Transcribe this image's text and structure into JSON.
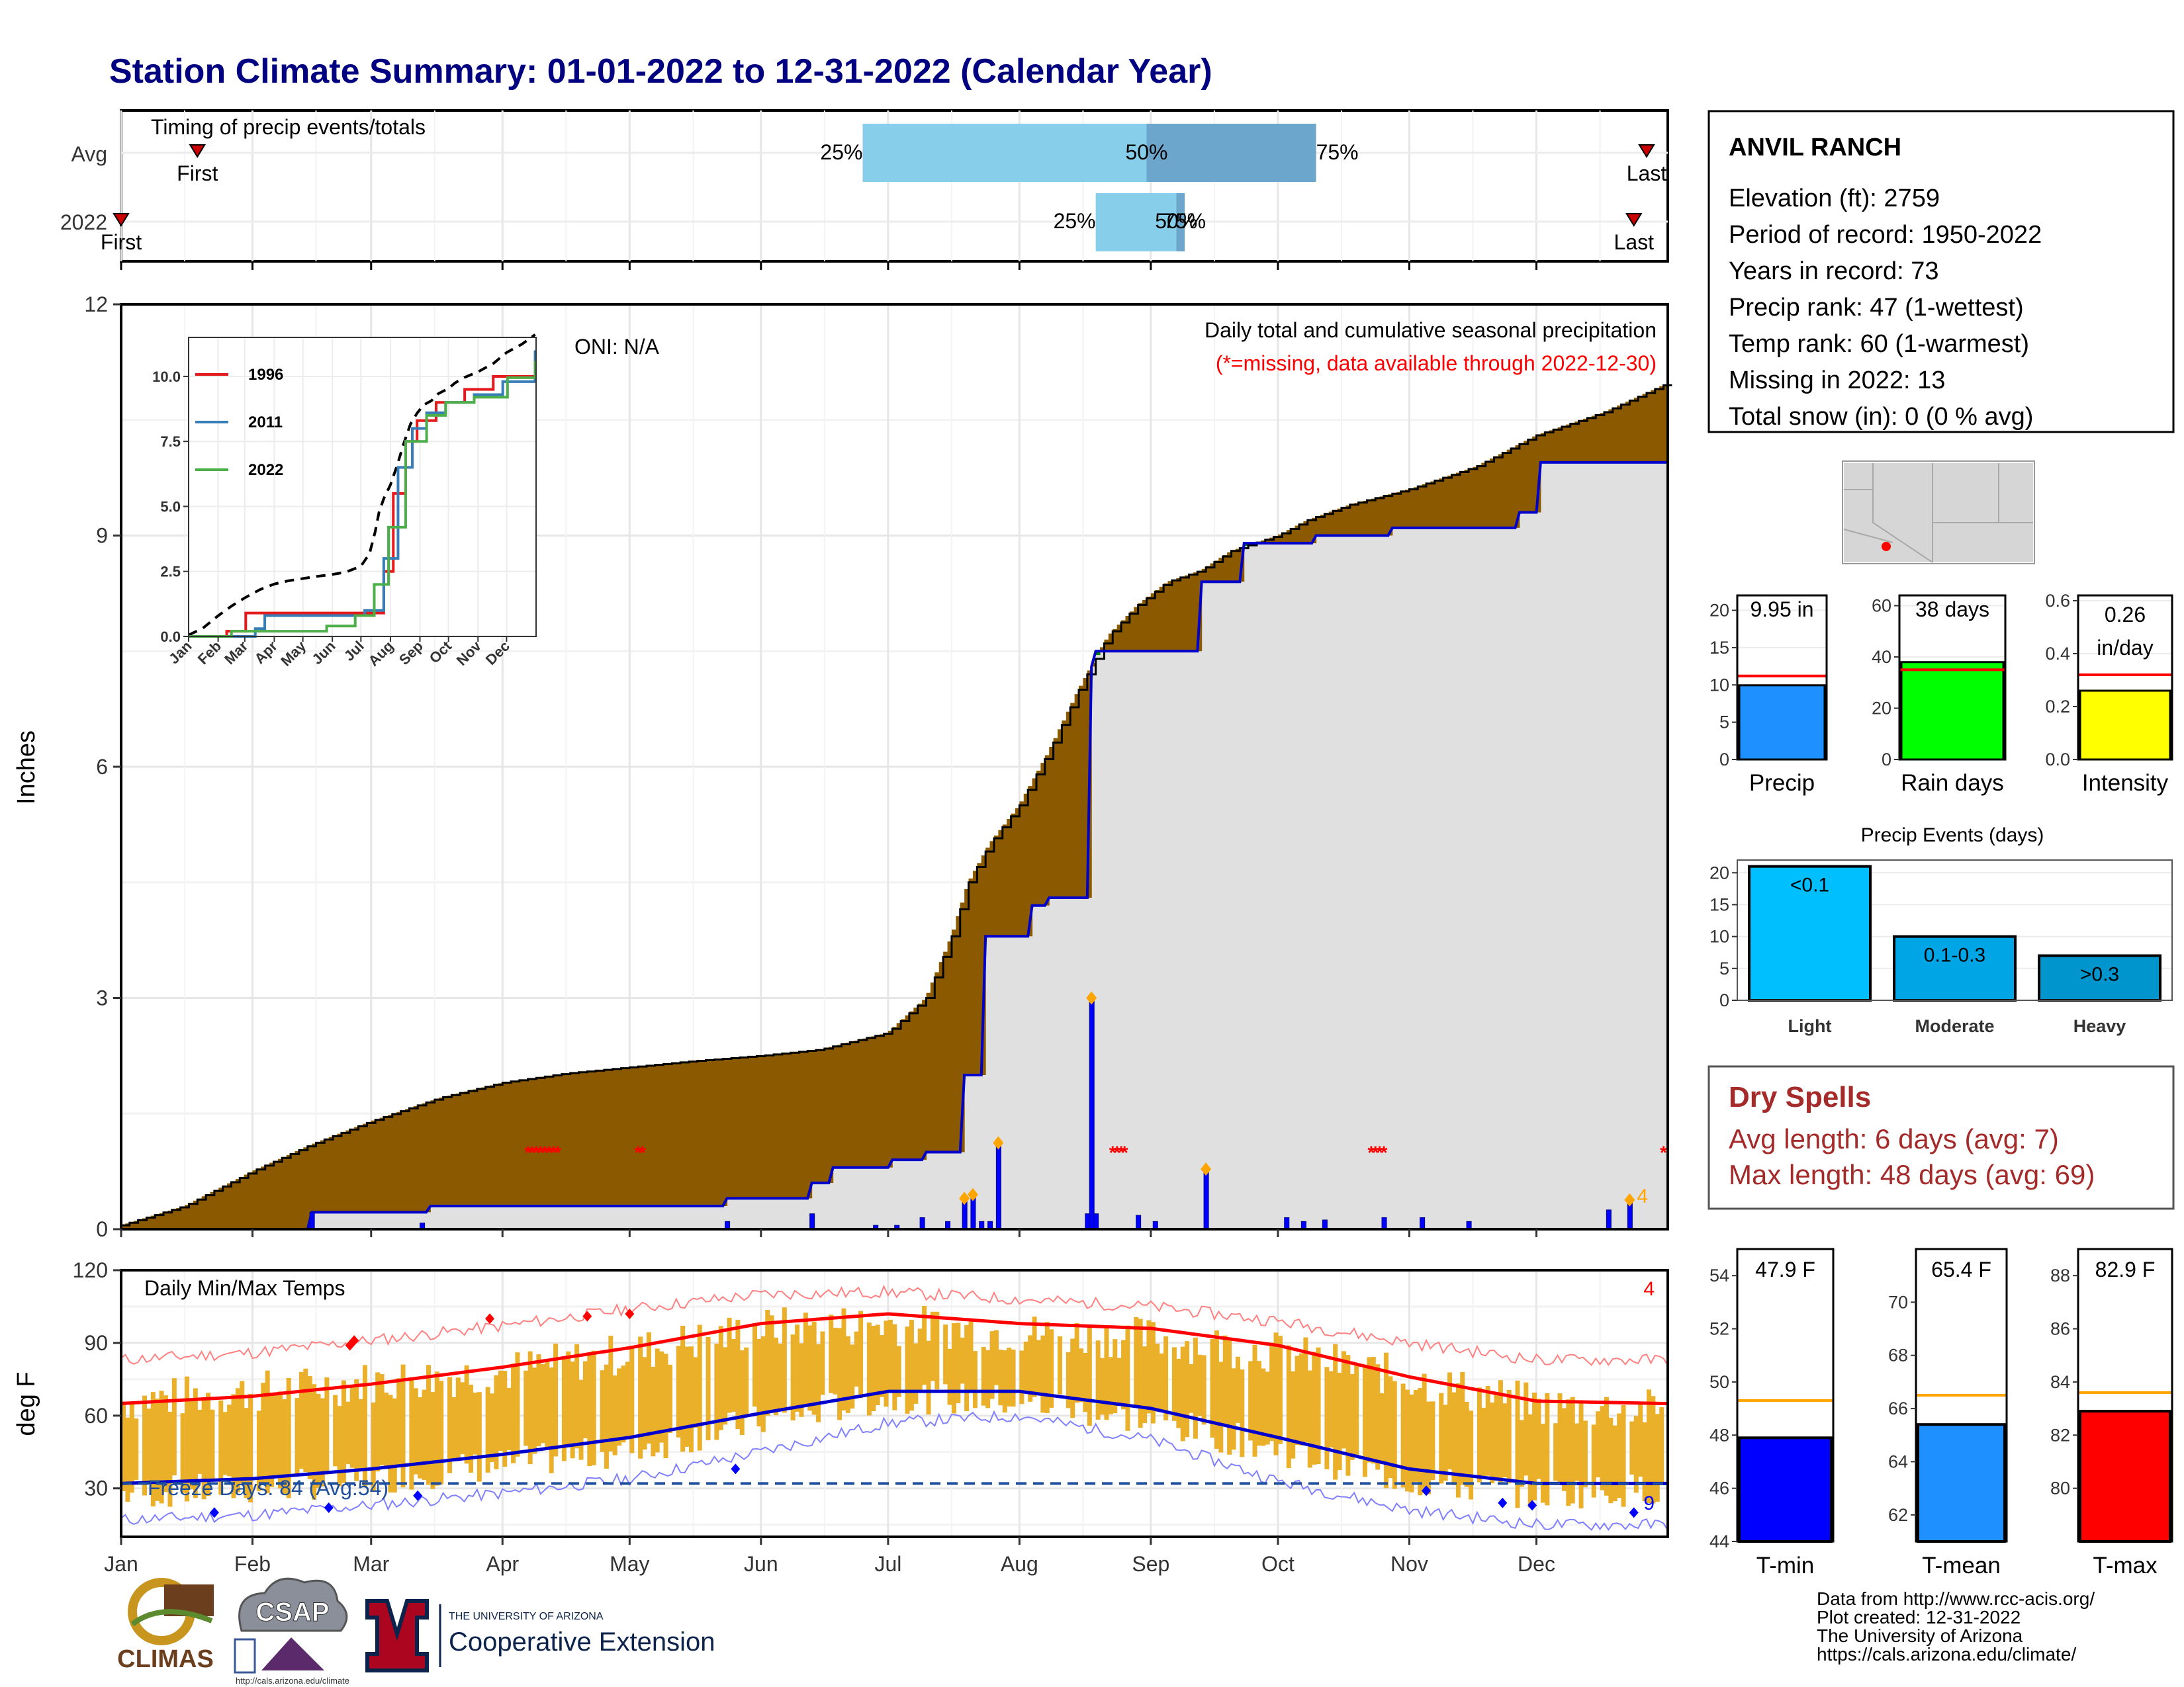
{
  "page": {
    "title": "Station Climate Summary: 01-01-2022 to 12-31-2022 (Calendar Year)",
    "title_color": "#000080"
  },
  "months": [
    "Jan",
    "Feb",
    "Mar",
    "Apr",
    "May",
    "Jun",
    "Jul",
    "Aug",
    "Sep",
    "Oct",
    "Nov",
    "Dec"
  ],
  "timing": {
    "title": "Timing of precip events/totals",
    "rows": [
      "Avg",
      "2022"
    ],
    "avg": {
      "first_day": 18,
      "last_day": 360,
      "q25_day": 175,
      "q50_day": 242,
      "q75_day": 282,
      "labels": {
        "first": "First",
        "last": "Last",
        "q25": "25%",
        "q50": "50%",
        "q75": "75%"
      }
    },
    "y2022": {
      "first_day": 0,
      "last_day": 357,
      "q25_day": 230,
      "q50_day": 249,
      "q75_day": 251,
      "labels": {
        "first": "First",
        "last": "Last",
        "q25": "25%",
        "q50": "50%",
        "q75": "75%"
      }
    }
  },
  "precip_panel": {
    "title": "Daily total and cumulative seasonal precipitation",
    "subtitle": "(*=missing, data available through 2022-12-30)",
    "oni": "ONI: N/A",
    "ylabel": "Inches",
    "ylim": [
      0,
      12
    ],
    "yticks": [
      0,
      3,
      6,
      9,
      12
    ],
    "count_label": "4",
    "colors": {
      "deficit": "#8B5A00",
      "surplus": "#008000",
      "cum_line": "#0000CD",
      "fill": "#E0E0E0",
      "missing": "#FF0000",
      "bars": "#0000FF",
      "markers": "#FFA500"
    }
  },
  "inset": {
    "yticks": [
      "0.0",
      "2.5",
      "5.0",
      "7.5",
      "10.0"
    ],
    "months": [
      "Jan",
      "Feb",
      "Mar",
      "Apr",
      "May",
      "Jun",
      "Jul",
      "Aug",
      "Sep",
      "Oct",
      "Nov",
      "Dec"
    ],
    "legend": [
      {
        "name": "1996",
        "color": "#E41A1C"
      },
      {
        "name": "2011",
        "color": "#377EB8"
      },
      {
        "name": "2022",
        "color": "#4DAF4A"
      }
    ]
  },
  "temp_panel": {
    "title": "Daily Min/Max Temps",
    "ylabel": "deg F",
    "ylim": [
      10,
      120
    ],
    "yticks": [
      30,
      60,
      90,
      120
    ],
    "freeze_text": "Freeze Days: 84 (Avg:54)",
    "max_count": "4",
    "min_count": "9"
  },
  "station": {
    "name": "ANVIL RANCH",
    "lines": [
      "Elevation (ft): 2759",
      "Period of record: 1950-2022",
      "Years in record: 73",
      "Precip rank: 47 (1-wettest)",
      "Temp rank: 60 (1-warmest)",
      "Missing in 2022: 13",
      "Total snow (in): 0 (0 % avg)"
    ]
  },
  "summary_bars": [
    {
      "label": "Precip",
      "value_text": "9.95 in",
      "value": 9.95,
      "avg": 11.2,
      "ymax": 22,
      "ticks": [
        0,
        5,
        10,
        15,
        20
      ],
      "color": "#1E90FF"
    },
    {
      "label": "Rain days",
      "value_text": "38 days",
      "value": 38,
      "avg": 35,
      "ymax": 64,
      "ticks": [
        0,
        20,
        40,
        60
      ],
      "color": "#00FF00"
    },
    {
      "label": "Intensity",
      "value_text": "0.26 in/day",
      "value_line1": "0.26",
      "value_line2": "in/day",
      "value": 0.26,
      "avg": 0.32,
      "ymax": 0.62,
      "ticks": [
        "0.0",
        "0.2",
        "0.4",
        "0.6"
      ],
      "color": "#FFFF00"
    }
  ],
  "events": {
    "title": "Precip Events (days)",
    "ticks": [
      0,
      5,
      10,
      15,
      20
    ],
    "bars": [
      {
        "label": "Light",
        "bin": "<0.1",
        "value": 21,
        "color": "#00BFFF"
      },
      {
        "label": "Moderate",
        "bin": "0.1-0.3",
        "value": 10,
        "color": "#00A5E6"
      },
      {
        "label": "Heavy",
        "bin": ">0.3",
        "value": 7,
        "color": "#0095CC"
      }
    ]
  },
  "dry_spells": {
    "title": "Dry Spells",
    "avg_line": "Avg length: 6 days (avg: 7)",
    "max_line": "Max length: 48 days (avg: 69)",
    "color": "#A52A2A"
  },
  "temp_bars": [
    {
      "label": "T-min",
      "value_text": "47.9 F",
      "value": 47.9,
      "avg": 49.3,
      "ymin": 44,
      "ymax": 55,
      "ticks": [
        44,
        46,
        48,
        50,
        52,
        54
      ],
      "color": "#0000FF"
    },
    {
      "label": "T-mean",
      "value_text": "65.4 F",
      "value": 65.4,
      "avg": 66.5,
      "ymin": 61,
      "ymax": 72,
      "ticks": [
        62,
        64,
        66,
        68,
        70
      ],
      "color": "#1E90FF"
    },
    {
      "label": "T-max",
      "value_text": "82.9 F",
      "value": 82.9,
      "avg": 83.6,
      "ymin": 78,
      "ymax": 89,
      "ticks": [
        80,
        82,
        84,
        86,
        88
      ],
      "color": "#FF0000"
    }
  ],
  "footer": {
    "credits": [
      "Data from http://www.rcc-acis.org/",
      "Plot created: 12-31-2022",
      "The University of Arizona",
      "https://cals.arizona.edu/climate/"
    ],
    "climas": "CLIMAS",
    "csap": "CSAP",
    "csap_url": "http://cals.arizona.edu/climate",
    "ua_small": "THE UNIVERSITY OF ARIZONA",
    "ua_big": "Cooperative Extension",
    "ua_letter": "A"
  },
  "chart_data": [
    {
      "type": "area",
      "title": "Daily total and cumulative seasonal precipitation",
      "ylabel": "Inches",
      "ylim": [
        0,
        12
      ],
      "series": [
        {
          "name": "cumulative average",
          "x": [
            0,
            15,
            31,
            45,
            59,
            75,
            90,
            105,
            120,
            135,
            151,
            165,
            181,
            190,
            196,
            200,
            205,
            212,
            219,
            226,
            233,
            240,
            247,
            255,
            262,
            273,
            280,
            290,
            304,
            320,
            334,
            350,
            364
          ],
          "values": [
            0.05,
            0.3,
            0.75,
            1.1,
            1.4,
            1.7,
            1.9,
            2.02,
            2.1,
            2.18,
            2.25,
            2.33,
            2.55,
            3.0,
            3.8,
            4.5,
            5.0,
            5.5,
            6.2,
            7.0,
            7.7,
            8.1,
            8.4,
            8.55,
            8.8,
            9.0,
            9.2,
            9.4,
            9.6,
            9.9,
            10.3,
            10.6,
            10.95
          ]
        },
        {
          "name": "2022 cumulative",
          "x": [
            0,
            45,
            45,
            73,
            73,
            143,
            143,
            163,
            163,
            168,
            173,
            182,
            190,
            199,
            204,
            210,
            215,
            219,
            228,
            229,
            230,
            234,
            240,
            246,
            255,
            265,
            282,
            300,
            330,
            335,
            364
          ],
          "values": [
            0.0,
            0.04,
            0.22,
            0.22,
            0.3,
            0.3,
            0.4,
            0.4,
            0.6,
            0.8,
            0.8,
            0.9,
            1.0,
            2.0,
            3.8,
            3.8,
            4.2,
            4.3,
            4.3,
            7.3,
            7.5,
            7.5,
            7.5,
            7.5,
            8.4,
            8.9,
            9.0,
            9.1,
            9.3,
            9.95,
            9.95
          ]
        },
        {
          "name": "daily precipitation",
          "x": [
            45,
            71,
            143,
            163,
            178,
            183,
            189,
            195,
            199,
            201,
            203,
            205,
            207,
            228,
            229,
            230,
            240,
            244,
            256,
            275,
            279,
            284,
            298,
            307,
            318,
            351,
            356
          ],
          "values": [
            0.22,
            0.08,
            0.1,
            0.2,
            0.05,
            0.05,
            0.15,
            0.1,
            0.4,
            0.45,
            0.1,
            0.1,
            1.12,
            0.2,
            3.0,
            0.2,
            0.18,
            0.1,
            0.78,
            0.15,
            0.1,
            0.12,
            0.15,
            0.15,
            0.1,
            0.25,
            0.38
          ]
        }
      ]
    },
    {
      "type": "line",
      "title": "Daily Min/Max Temps",
      "ylabel": "deg F",
      "ylim": [
        10,
        120
      ],
      "x": [
        0,
        31,
        59,
        90,
        120,
        151,
        181,
        212,
        243,
        273,
        304,
        334,
        364
      ],
      "series": [
        {
          "name": "normal max",
          "values": [
            65,
            68,
            73,
            80,
            88,
            98,
            102,
            98,
            96,
            89,
            76,
            66,
            65
          ]
        },
        {
          "name": "normal min",
          "values": [
            32,
            34,
            38,
            44,
            51,
            61,
            70,
            70,
            63,
            51,
            38,
            32,
            32
          ]
        },
        {
          "name": "record max",
          "values": [
            83,
            86,
            91,
            97,
            104,
            110,
            111,
            108,
            105,
            99,
            90,
            83,
            83
          ]
        },
        {
          "name": "record min",
          "values": [
            17,
            19,
            23,
            28,
            34,
            45,
            57,
            60,
            50,
            33,
            21,
            15,
            15
          ]
        },
        {
          "name": "daily max 2022",
          "values": [
            66,
            70,
            74,
            78,
            86,
            96,
            98,
            94,
            92,
            86,
            75,
            64,
            62
          ]
        },
        {
          "name": "daily min 2022",
          "values": [
            28,
            30,
            34,
            40,
            46,
            58,
            68,
            66,
            58,
            46,
            33,
            28,
            30
          ]
        }
      ],
      "freeze_threshold": 32
    }
  ]
}
